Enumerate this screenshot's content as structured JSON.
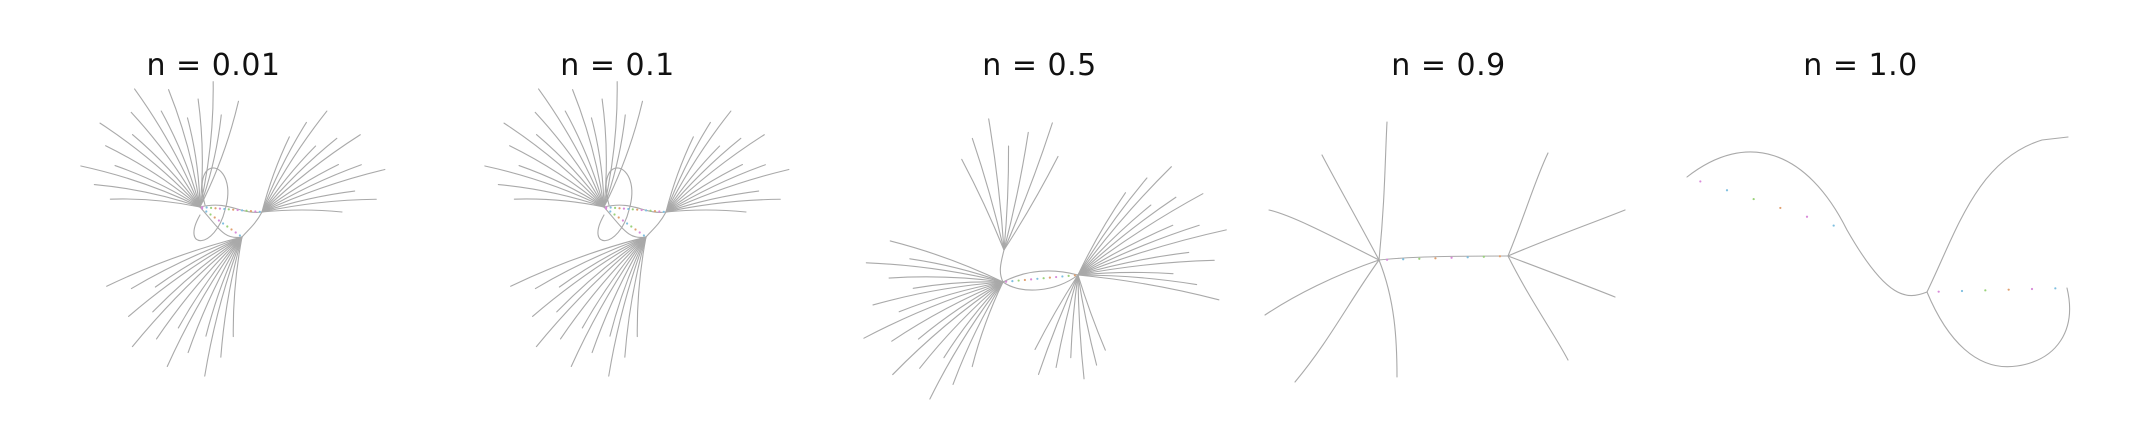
{
  "figure": {
    "panels": [
      {
        "title": "n = 0.01"
      },
      {
        "title": "n = 0.1"
      },
      {
        "title": "n = 0.5"
      },
      {
        "title": "n = 0.9"
      },
      {
        "title": "n = 1.0"
      }
    ],
    "colors": {
      "line": "#a9a9a9",
      "accents": [
        "#d98ad9",
        "#7fbfe0",
        "#9ad27a",
        "#e0a070"
      ]
    }
  }
}
